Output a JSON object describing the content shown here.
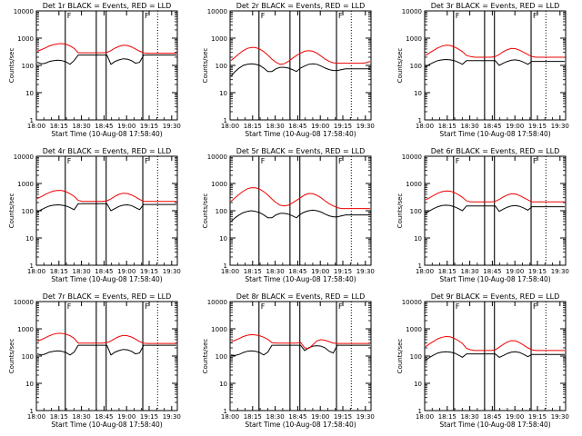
{
  "colors": {
    "events": "#000000",
    "lld": "#ee0000",
    "axes": "#000000",
    "markers": "#000000"
  },
  "chart_data": [
    {
      "type": "line",
      "log_y": true,
      "ylim": [
        1,
        10000
      ],
      "title": "Det 1r BLACK = Events, RED = LLD",
      "xlabel": "Start Time (10-Aug-08 17:58:40)",
      "ylabel": "Counts/sec",
      "x_tick_labels": [
        "18:00",
        "18:15",
        "18:30",
        "18:45",
        "19:00",
        "19:15",
        "19:30"
      ],
      "y_tick_labels": [
        "1",
        "10",
        "100",
        "1000",
        "10000"
      ],
      "markers": [
        {
          "label": "F"
        },
        {
          "label": ""
        },
        {
          "label": ""
        },
        {
          "label": "F"
        }
      ],
      "series": [
        {
          "name": "Events",
          "values": [
            130,
            115,
            120,
            140,
            150,
            155,
            150,
            135,
            110,
            150,
            240,
            240,
            240,
            240,
            240,
            240,
            240,
            240,
            110,
            140,
            160,
            175,
            170,
            150,
            120,
            130,
            240,
            240,
            240,
            240,
            240,
            240,
            240,
            240,
            240
          ]
        },
        {
          "name": "LLD",
          "values": [
            330,
            380,
            440,
            520,
            580,
            620,
            630,
            600,
            520,
            420,
            290,
            290,
            290,
            290,
            290,
            290,
            290,
            300,
            350,
            430,
            500,
            550,
            540,
            480,
            400,
            330,
            290,
            280,
            280,
            280,
            280,
            280,
            280,
            280,
            280
          ]
        }
      ]
    },
    {
      "type": "line",
      "log_y": true,
      "ylim": [
        1,
        10000
      ],
      "title": "Det 2r BLACK = Events, RED = LLD",
      "xlabel": "Start Time (10-Aug-08 17:58:40)",
      "ylabel": "Counts/sec",
      "x_tick_labels": [
        "18:00",
        "18:15",
        "18:30",
        "18:45",
        "19:00",
        "19:15",
        "19:30"
      ],
      "y_tick_labels": [
        "1",
        "10",
        "100",
        "1000",
        "10000"
      ],
      "markers": [
        {
          "label": "F"
        },
        {
          "label": ""
        },
        {
          "label": ""
        },
        {
          "label": "F"
        }
      ],
      "series": [
        {
          "name": "Events",
          "values": [
            40,
            60,
            80,
            100,
            110,
            115,
            110,
            100,
            80,
            60,
            60,
            75,
            85,
            85,
            80,
            70,
            60,
            80,
            95,
            110,
            115,
            110,
            95,
            80,
            70,
            65,
            65,
            70,
            75,
            75,
            75,
            75,
            75,
            75,
            75
          ]
        },
        {
          "name": "LLD",
          "values": [
            150,
            200,
            270,
            350,
            420,
            460,
            450,
            400,
            320,
            240,
            170,
            130,
            110,
            115,
            140,
            180,
            230,
            280,
            330,
            350,
            330,
            280,
            220,
            170,
            140,
            125,
            120,
            120,
            120,
            120,
            120,
            120,
            120,
            125,
            140
          ]
        }
      ]
    },
    {
      "type": "line",
      "log_y": true,
      "ylim": [
        1,
        10000
      ],
      "title": "Det 3r BLACK = Events, RED = LLD",
      "xlabel": "Start Time (10-Aug-08 17:58:40)",
      "ylabel": "Counts/sec",
      "x_tick_labels": [
        "18:00",
        "18:15",
        "18:30",
        "18:45",
        "19:00",
        "19:15",
        "19:30"
      ],
      "y_tick_labels": [
        "1",
        "10",
        "100",
        "1000",
        "10000"
      ],
      "markers": [
        {
          "label": "F"
        },
        {
          "label": ""
        },
        {
          "label": ""
        },
        {
          "label": "F"
        }
      ],
      "series": [
        {
          "name": "Events",
          "values": [
            90,
            110,
            130,
            150,
            160,
            165,
            160,
            150,
            130,
            110,
            150,
            150,
            150,
            150,
            150,
            150,
            150,
            150,
            100,
            120,
            140,
            155,
            160,
            150,
            130,
            110,
            140,
            140,
            140,
            140,
            140,
            140,
            140,
            140,
            140
          ]
        },
        {
          "name": "LLD",
          "values": [
            230,
            290,
            360,
            440,
            510,
            550,
            540,
            480,
            400,
            320,
            230,
            210,
            200,
            200,
            200,
            200,
            200,
            210,
            250,
            320,
            380,
            420,
            410,
            360,
            300,
            250,
            210,
            200,
            200,
            200,
            200,
            200,
            200,
            200,
            200
          ]
        }
      ]
    },
    {
      "type": "line",
      "log_y": true,
      "ylim": [
        1,
        10000
      ],
      "title": "Det 4r BLACK = Events, RED = LLD",
      "xlabel": "Start Time (10-Aug-08 17:58:40)",
      "ylabel": "Counts/sec",
      "x_tick_labels": [
        "18:00",
        "18:15",
        "18:30",
        "18:45",
        "19:00",
        "19:15",
        "19:30"
      ],
      "y_tick_labels": [
        "1",
        "10",
        "100",
        "1000",
        "10000"
      ],
      "markers": [
        {
          "label": "F"
        },
        {
          "label": ""
        },
        {
          "label": ""
        },
        {
          "label": "F"
        }
      ],
      "series": [
        {
          "name": "Events",
          "values": [
            90,
            110,
            130,
            150,
            160,
            165,
            160,
            150,
            130,
            110,
            180,
            180,
            180,
            180,
            180,
            180,
            180,
            180,
            100,
            120,
            145,
            160,
            165,
            155,
            130,
            110,
            170,
            170,
            170,
            170,
            170,
            170,
            170,
            170,
            170
          ]
        },
        {
          "name": "LLD",
          "values": [
            280,
            330,
            400,
            470,
            530,
            560,
            550,
            500,
            420,
            340,
            240,
            220,
            220,
            220,
            220,
            220,
            220,
            230,
            270,
            340,
            400,
            440,
            430,
            380,
            320,
            260,
            220,
            220,
            220,
            220,
            220,
            220,
            220,
            220,
            220
          ]
        }
      ]
    },
    {
      "type": "line",
      "log_y": true,
      "ylim": [
        1,
        10000
      ],
      "title": "Det 5r BLACK = Events, RED = LLD",
      "xlabel": "Start Time (10-Aug-08 17:58:40)",
      "ylabel": "Counts/sec",
      "x_tick_labels": [
        "18:00",
        "18:15",
        "18:30",
        "18:45",
        "19:00",
        "19:15",
        "19:30"
      ],
      "y_tick_labels": [
        "1",
        "10",
        "100",
        "1000",
        "10000"
      ],
      "markers": [
        {
          "label": "F"
        },
        {
          "label": ""
        },
        {
          "label": ""
        },
        {
          "label": "F"
        }
      ],
      "series": [
        {
          "name": "Events",
          "values": [
            40,
            55,
            70,
            85,
            95,
            100,
            95,
            85,
            70,
            55,
            55,
            70,
            80,
            80,
            75,
            65,
            55,
            75,
            90,
            100,
            105,
            100,
            90,
            75,
            65,
            60,
            60,
            65,
            70,
            70,
            70,
            70,
            70,
            70,
            70
          ]
        },
        {
          "name": "LLD",
          "values": [
            220,
            300,
            400,
            520,
            640,
            700,
            690,
            620,
            500,
            380,
            270,
            200,
            160,
            150,
            160,
            190,
            240,
            300,
            380,
            430,
            420,
            370,
            300,
            230,
            180,
            150,
            130,
            120,
            120,
            120,
            120,
            120,
            120,
            120,
            120
          ]
        }
      ]
    },
    {
      "type": "line",
      "log_y": true,
      "ylim": [
        1,
        10000
      ],
      "title": "Det 6r BLACK = Events, RED = LLD",
      "xlabel": "Start Time (10-Aug-08 17:58:40)",
      "ylabel": "Counts/sec",
      "x_tick_labels": [
        "18:00",
        "18:15",
        "18:30",
        "18:45",
        "19:00",
        "19:15",
        "19:30"
      ],
      "y_tick_labels": [
        "1",
        "10",
        "100",
        "1000",
        "10000"
      ],
      "markers": [
        {
          "label": "F"
        },
        {
          "label": ""
        },
        {
          "label": ""
        },
        {
          "label": "F"
        }
      ],
      "series": [
        {
          "name": "Events",
          "values": [
            80,
            100,
            120,
            140,
            155,
            160,
            155,
            140,
            120,
            100,
            150,
            150,
            150,
            150,
            150,
            150,
            150,
            150,
            95,
            115,
            135,
            150,
            155,
            145,
            125,
            105,
            140,
            140,
            140,
            140,
            140,
            140,
            140,
            140,
            140
          ]
        },
        {
          "name": "LLD",
          "values": [
            250,
            300,
            370,
            440,
            500,
            530,
            520,
            470,
            390,
            310,
            230,
            210,
            210,
            210,
            210,
            210,
            210,
            220,
            260,
            320,
            380,
            420,
            410,
            360,
            300,
            250,
            210,
            210,
            210,
            210,
            210,
            210,
            210,
            210,
            210
          ]
        }
      ]
    },
    {
      "type": "line",
      "log_y": true,
      "ylim": [
        1,
        10000
      ],
      "title": "Det 7r BLACK = Events, RED = LLD",
      "xlabel": "Start Time (10-Aug-08 17:58:40)",
      "ylabel": "Counts/sec",
      "x_tick_labels": [
        "18:00",
        "18:15",
        "18:30",
        "18:45",
        "19:00",
        "19:15",
        "19:30"
      ],
      "y_tick_labels": [
        "1",
        "10",
        "100",
        "1000",
        "10000"
      ],
      "markers": [
        {
          "label": "F"
        },
        {
          "label": ""
        },
        {
          "label": ""
        },
        {
          "label": "F"
        }
      ],
      "series": [
        {
          "name": "Events",
          "values": [
            120,
            110,
            120,
            140,
            150,
            155,
            150,
            135,
            110,
            140,
            250,
            250,
            250,
            250,
            250,
            250,
            250,
            250,
            110,
            140,
            160,
            175,
            170,
            150,
            120,
            130,
            250,
            250,
            250,
            250,
            250,
            250,
            250,
            250,
            250
          ]
        },
        {
          "name": "LLD",
          "values": [
            350,
            400,
            470,
            560,
            640,
            680,
            680,
            640,
            560,
            450,
            300,
            300,
            300,
            300,
            300,
            300,
            300,
            310,
            360,
            440,
            520,
            570,
            560,
            500,
            420,
            340,
            300,
            290,
            290,
            290,
            290,
            290,
            290,
            290,
            290
          ]
        }
      ]
    },
    {
      "type": "line",
      "log_y": true,
      "ylim": [
        1,
        10000
      ],
      "title": "Det 8r BLACK = Events, RED = LLD",
      "xlabel": "Start Time (10-Aug-08 17:58:40)",
      "ylabel": "Counts/sec",
      "x_tick_labels": [
        "18:00",
        "18:15",
        "18:30",
        "18:45",
        "19:00",
        "19:15",
        "19:30"
      ],
      "y_tick_labels": [
        "1",
        "10",
        "100",
        "1000",
        "10000"
      ],
      "markers": [
        {
          "label": "F"
        },
        {
          "label": ""
        },
        {
          "label": ""
        },
        {
          "label": "F"
        }
      ],
      "series": [
        {
          "name": "Events",
          "values": [
            110,
            105,
            115,
            135,
            150,
            155,
            150,
            135,
            110,
            140,
            250,
            250,
            250,
            250,
            250,
            250,
            250,
            250,
            160,
            200,
            230,
            240,
            230,
            200,
            150,
            130,
            250,
            250,
            250,
            250,
            250,
            250,
            250,
            250,
            250
          ]
        },
        {
          "name": "LLD",
          "values": [
            330,
            380,
            440,
            520,
            580,
            610,
            600,
            560,
            490,
            410,
            310,
            300,
            300,
            300,
            300,
            300,
            300,
            320,
            200,
            190,
            260,
            360,
            400,
            380,
            340,
            300,
            290,
            290,
            290,
            290,
            290,
            290,
            290,
            290,
            290
          ]
        }
      ]
    },
    {
      "type": "line",
      "log_y": true,
      "ylim": [
        1,
        10000
      ],
      "title": "Det 9r BLACK = Events, RED = LLD",
      "xlabel": "Start Time (10-Aug-08 17:58:40)",
      "ylabel": "Counts/sec",
      "x_tick_labels": [
        "18:00",
        "18:15",
        "18:30",
        "18:45",
        "19:00",
        "19:15",
        "19:30"
      ],
      "y_tick_labels": [
        "1",
        "10",
        "100",
        "1000",
        "10000"
      ],
      "markers": [
        {
          "label": "F"
        },
        {
          "label": ""
        },
        {
          "label": ""
        },
        {
          "label": "F"
        }
      ],
      "series": [
        {
          "name": "Events",
          "values": [
            70,
            90,
            110,
            130,
            140,
            145,
            140,
            130,
            110,
            90,
            120,
            120,
            120,
            120,
            120,
            120,
            120,
            120,
            90,
            105,
            125,
            140,
            145,
            135,
            115,
            95,
            115,
            115,
            115,
            115,
            115,
            115,
            115,
            115,
            115
          ]
        },
        {
          "name": "LLD",
          "values": [
            220,
            280,
            350,
            430,
            490,
            520,
            510,
            450,
            370,
            290,
            190,
            170,
            160,
            160,
            160,
            160,
            160,
            170,
            210,
            270,
            330,
            370,
            360,
            310,
            250,
            200,
            170,
            160,
            160,
            160,
            160,
            160,
            160,
            160,
            160
          ]
        }
      ]
    }
  ]
}
